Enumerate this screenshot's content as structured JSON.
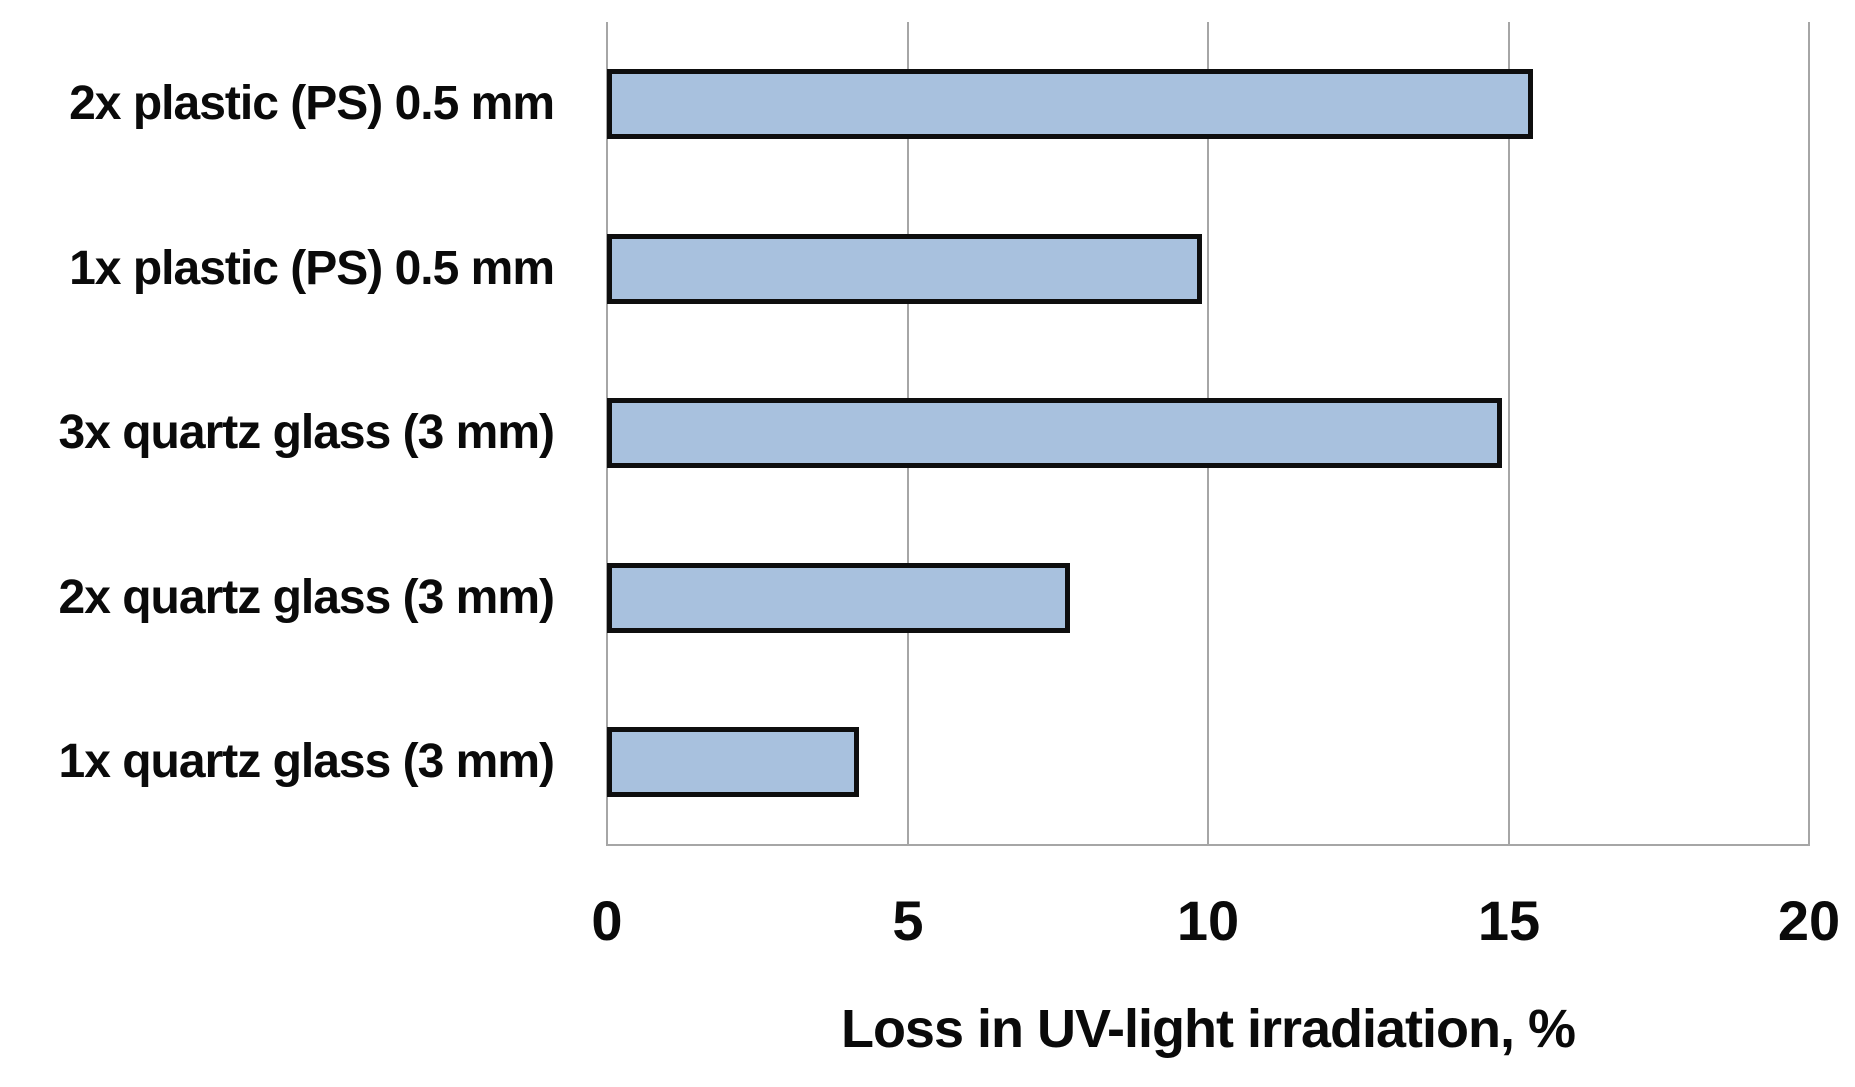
{
  "chart_data": {
    "type": "bar",
    "orientation": "horizontal",
    "title": "",
    "categories": [
      "2x plastic (PS) 0.5 mm",
      "1x plastic (PS) 0.5 mm",
      "3x quartz glass (3 mm)",
      "2x quartz glass (3 mm)",
      "1x quartz glass (3 mm)"
    ],
    "values": [
      15.4,
      9.9,
      14.9,
      7.7,
      4.2
    ],
    "xlabel": "Loss in UV-light irradiation, %",
    "ylabel": "",
    "xlim": [
      0,
      20
    ],
    "xtick_labels": [
      "0",
      "5",
      "10",
      "15",
      "20"
    ],
    "xtick_values": [
      0,
      5,
      10,
      15,
      20
    ],
    "grid": true,
    "legend": false,
    "colors": {
      "bar_fill": "#a8c1de",
      "bar_border": "#0e0e0e",
      "gridline": "#a6a6a6",
      "text": "#0a0a0a",
      "background": "#ffffff"
    }
  }
}
